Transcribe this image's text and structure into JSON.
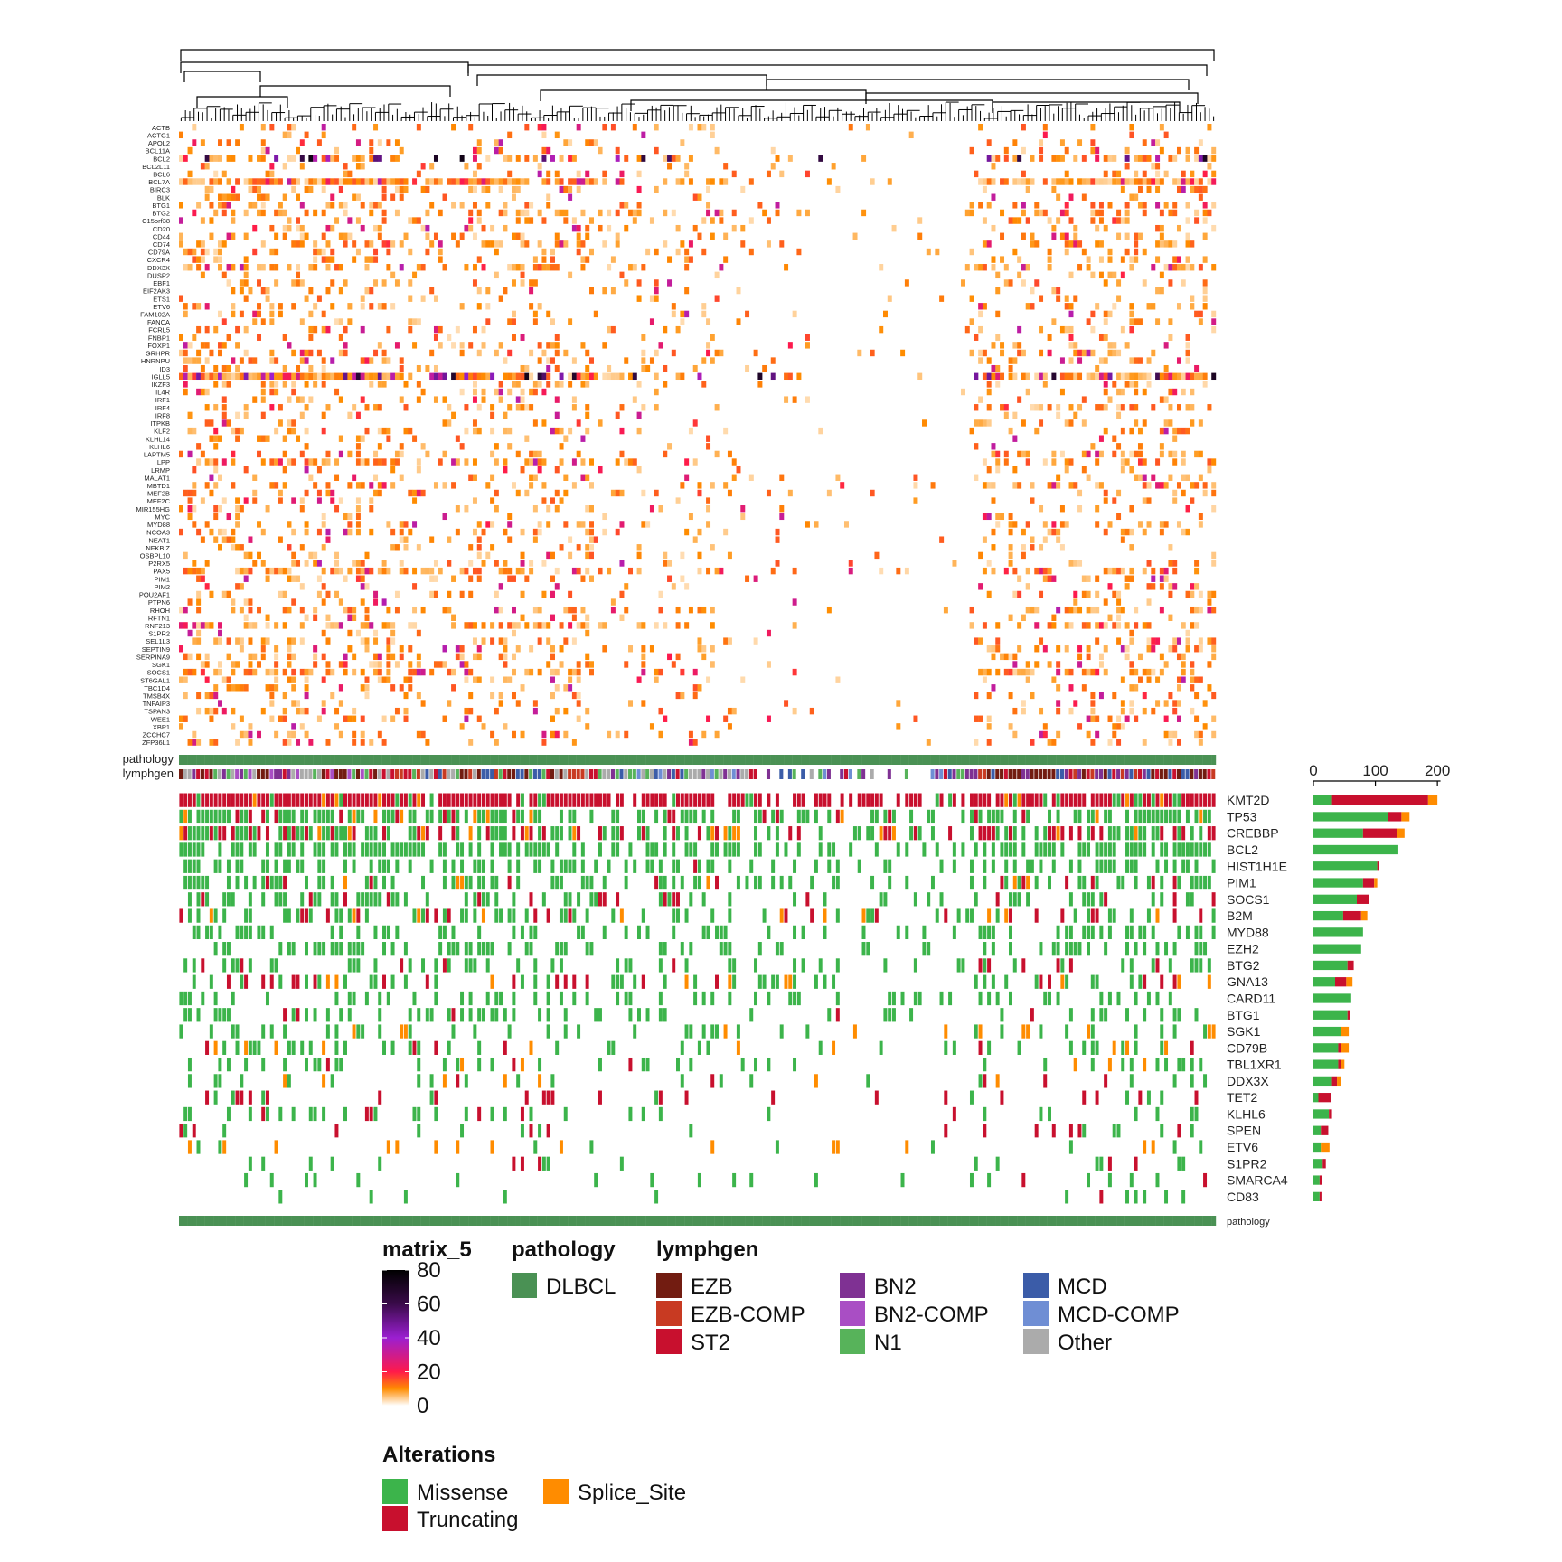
{
  "chart_data": [
    {
      "type": "heatmap",
      "name": "expression-heatmap",
      "colorscale": {
        "title": "matrix_5",
        "ticks": [
          0,
          20,
          40,
          60,
          80
        ],
        "stops": [
          {
            "value": 0,
            "color": "#ffffff"
          },
          {
            "value": 10,
            "color": "#ff8c00"
          },
          {
            "value": 20,
            "color": "#ff1a4a"
          },
          {
            "value": 40,
            "color": "#9b1fd1"
          },
          {
            "value": 60,
            "color": "#3a0b4a"
          },
          {
            "value": 80,
            "color": "#000000"
          }
        ]
      },
      "rows": [
        "ACTB",
        "ACTG1",
        "APOL2",
        "BCL11A",
        "BCL2",
        "BCL2L11",
        "BCL6",
        "BCL7A",
        "BIRC3",
        "BLK",
        "BTG1",
        "BTG2",
        "C15orf38",
        "CD20",
        "CD44",
        "CD74",
        "CD79A",
        "CXCR4",
        "DDX3X",
        "DUSP2",
        "EBF1",
        "EIF2AK3",
        "ETS1",
        "ETV6",
        "FAM102A",
        "FANCA",
        "FCRL5",
        "FNBP1",
        "FOXP1",
        "GRHPR",
        "HNRNPU",
        "ID3",
        "IGLL5",
        "IKZF3",
        "IL4R",
        "IRF1",
        "IRF4",
        "IRF8",
        "ITPKB",
        "KLF2",
        "KLHL14",
        "KLHL6",
        "LAPTM5",
        "LPP",
        "LRMP",
        "MALAT1",
        "MBTD1",
        "MEF2B",
        "MEF2C",
        "MIR155HG",
        "MYC",
        "MYD88",
        "NCOA3",
        "NEAT1",
        "NFKBIZ",
        "OSBPL10",
        "P2RX5",
        "PAX5",
        "PIM1",
        "PIM2",
        "POU2AF1",
        "PTPN6",
        "RHOH",
        "RFTN1",
        "RNF213",
        "S1PR2",
        "SEL1L3",
        "SEPTIN9",
        "SERPINA9",
        "SGK1",
        "SOCS1",
        "ST6GAL1",
        "TBC1D4",
        "TMSB4X",
        "TNFAIP3",
        "TSPAN3",
        "WEE1",
        "XBP1",
        "ZCCHC7",
        "ZFP36L1"
      ],
      "annotations": {
        "pathology": "pathology",
        "lymphgen": "lymphgen"
      }
    },
    {
      "type": "bar",
      "name": "oncoprint-mutation-counts",
      "orientation": "horizontal",
      "stacked": true,
      "categories": [
        "KMT2D",
        "TP53",
        "CREBBP",
        "BCL2",
        "HIST1H1E",
        "PIM1",
        "SOCS1",
        "B2M",
        "MYD88",
        "EZH2",
        "BTG2",
        "GNA13",
        "CARD11",
        "BTG1",
        "SGK1",
        "CD79B",
        "TBL1XR1",
        "DDX3X",
        "TET2",
        "KLHL6",
        "SPEN",
        "ETV6",
        "S1PR2",
        "SMARCA4",
        "CD83"
      ],
      "series": [
        {
          "name": "Missense",
          "values": [
            30,
            120,
            80,
            137,
            103,
            80,
            70,
            48,
            80,
            77,
            55,
            35,
            61,
            55,
            45,
            40,
            40,
            30,
            8,
            25,
            12,
            12,
            15,
            10,
            10
          ]
        },
        {
          "name": "Truncating",
          "values": [
            155,
            22,
            55,
            0,
            2,
            18,
            20,
            29,
            0,
            0,
            10,
            18,
            0,
            4,
            0,
            5,
            5,
            8,
            20,
            5,
            12,
            0,
            5,
            4,
            3
          ]
        },
        {
          "name": "Splice_Site",
          "values": [
            15,
            13,
            12,
            0,
            0,
            5,
            0,
            10,
            0,
            0,
            0,
            10,
            0,
            0,
            12,
            12,
            5,
            6,
            0,
            0,
            0,
            14,
            0,
            0,
            0
          ]
        }
      ],
      "xlim": [
        0,
        210
      ],
      "xticks": [
        0,
        100,
        200
      ],
      "bottom_annotation": "pathology"
    }
  ],
  "legends": {
    "pathology": {
      "title": "pathology",
      "items": [
        {
          "label": "DLBCL",
          "color": "#4a9154"
        }
      ]
    },
    "lymphgen": {
      "title": "lymphgen",
      "items": [
        {
          "label": "EZB",
          "color": "#721c11"
        },
        {
          "label": "EZB-COMP",
          "color": "#c83a22"
        },
        {
          "label": "ST2",
          "color": "#c8102e"
        },
        {
          "label": "BN2",
          "color": "#7f3193"
        },
        {
          "label": "BN2-COMP",
          "color": "#a94ec4"
        },
        {
          "label": "N1",
          "color": "#57b35a"
        },
        {
          "label": "MCD",
          "color": "#3b5ca8"
        },
        {
          "label": "MCD-COMP",
          "color": "#6f8ed4"
        },
        {
          "label": "Other",
          "color": "#ababab"
        }
      ]
    },
    "alterations": {
      "title": "Alterations",
      "items": [
        {
          "label": "Missense",
          "color": "#3cb44b"
        },
        {
          "label": "Splice_Site",
          "color": "#ff8c00"
        },
        {
          "label": "Truncating",
          "color": "#c8102e"
        }
      ]
    }
  }
}
